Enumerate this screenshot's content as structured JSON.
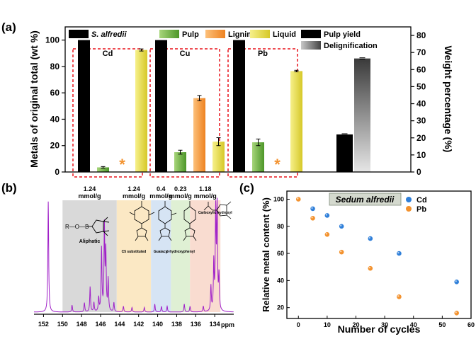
{
  "chart_data": [
    {
      "panel": "(a)",
      "type": "bar",
      "ylabel_left": "Metals of original total (wt %)",
      "ylabel_right": "Weight percentage (%)",
      "ylim_left": [
        0,
        110
      ],
      "ylim_right": [
        0,
        85
      ],
      "yticks_left": [
        "0",
        "20",
        "40",
        "60",
        "80",
        "100"
      ],
      "yticks_right": [
        "0",
        "10",
        "20",
        "30",
        "40",
        "50",
        "60",
        "70",
        "80"
      ],
      "legend": [
        {
          "label": "S. alfredii",
          "color": "#2f7fd9"
        },
        {
          "label": "Pulp",
          "color": "#5fa33a"
        },
        {
          "label": "Lignin",
          "color": "#f3922e"
        },
        {
          "label": "Liquid",
          "color": "#e3d83a"
        },
        {
          "label": "Pulp yield",
          "color": "#ef3a4a"
        },
        {
          "label": "Delignification",
          "color": "#4a4a4a"
        }
      ],
      "groups": [
        {
          "name": "Cd",
          "bars": [
            {
              "series": "S. alfredii",
              "value": 100,
              "error": null
            },
            {
              "series": "Pulp",
              "value": 3.5,
              "error": 0.6
            },
            {
              "series": "Lignin",
              "value": 0,
              "error": null,
              "star": true
            },
            {
              "series": "Liquid",
              "value": 92.5,
              "error": 0.8
            }
          ]
        },
        {
          "name": "Cu",
          "bars": [
            {
              "series": "S. alfredii",
              "value": 100,
              "error": null
            },
            {
              "series": "Pulp",
              "value": 15,
              "error": 1.5
            },
            {
              "series": "Lignin",
              "value": 56,
              "error": 2.0
            },
            {
              "series": "Liquid",
              "value": 23,
              "error": 3.0
            }
          ]
        },
        {
          "name": "Pb",
          "bars": [
            {
              "series": "S. alfredii",
              "value": 100,
              "error": null
            },
            {
              "series": "Pulp",
              "value": 22.5,
              "error": 2.5
            },
            {
              "series": "Lignin",
              "value": 0,
              "error": null,
              "star": true
            },
            {
              "series": "Liquid",
              "value": 76.5,
              "error": 0.6
            }
          ]
        }
      ],
      "right_axis_bars": [
        {
          "series": "Pulp yield",
          "value": 22,
          "error": 0.4
        },
        {
          "series": "Delignification",
          "value": 66.5,
          "error": 0.4
        }
      ],
      "star_symbol": "*"
    },
    {
      "panel": "(b)",
      "type": "line",
      "xlabel": "ppm",
      "xlim": [
        153,
        132
      ],
      "xticks": [
        "152",
        "150",
        "148",
        "146",
        "144",
        "142",
        "140",
        "138",
        "136",
        "134"
      ],
      "regions": [
        {
          "range": [
            150,
            144.3
          ],
          "color": "#d9d9d9",
          "value_label": "1.24",
          "unit": "mmol/g",
          "name": "Aliphatic",
          "formula": "R—O—B"
        },
        {
          "range": [
            144.3,
            140.7
          ],
          "color": "#fbe8c4",
          "value_label": "1.24",
          "unit": "mmol/g",
          "name": "C5 substituted"
        },
        {
          "range": [
            140.7,
            138.6
          ],
          "color": "#d6e4f4",
          "value_label": "0.4",
          "unit": "mmol/g",
          "name": "Guaiacyl"
        },
        {
          "range": [
            138.6,
            136.6
          ],
          "color": "#dff0d4",
          "value_label": "0.23",
          "unit": "mmol/g",
          "name": "p-hydroxyphenyl"
        },
        {
          "range": [
            136.6,
            133.4
          ],
          "color": "#f9dcd0",
          "value_label": "1.18",
          "unit": "mmol/g",
          "name": "Carboxylic hydroxyl"
        }
      ],
      "peaks": [
        {
          "ppm": 151.5,
          "h": 0.97
        },
        {
          "ppm": 149.0,
          "h": 0.06
        },
        {
          "ppm": 147.7,
          "h": 0.08
        },
        {
          "ppm": 147.1,
          "h": 0.22
        },
        {
          "ppm": 146.7,
          "h": 0.08
        },
        {
          "ppm": 146.2,
          "h": 0.12
        },
        {
          "ppm": 145.9,
          "h": 0.55
        },
        {
          "ppm": 145.6,
          "h": 0.74
        },
        {
          "ppm": 145.45,
          "h": 0.52
        },
        {
          "ppm": 145.2,
          "h": 0.28
        },
        {
          "ppm": 144.6,
          "h": 0.08
        },
        {
          "ppm": 143.6,
          "h": 0.05
        },
        {
          "ppm": 142.7,
          "h": 0.04
        },
        {
          "ppm": 141.4,
          "h": 0.04
        },
        {
          "ppm": 140.3,
          "h": 0.07
        },
        {
          "ppm": 139.6,
          "h": 0.05
        },
        {
          "ppm": 139.0,
          "h": 0.05
        },
        {
          "ppm": 137.2,
          "h": 0.07
        },
        {
          "ppm": 136.6,
          "h": 0.05
        },
        {
          "ppm": 135.2,
          "h": 0.05
        },
        {
          "ppm": 134.4,
          "h": 0.22
        },
        {
          "ppm": 134.1,
          "h": 0.42
        },
        {
          "ppm": 133.9,
          "h": 0.85
        },
        {
          "ppm": 133.75,
          "h": 0.98
        },
        {
          "ppm": 133.55,
          "h": 0.3
        }
      ]
    },
    {
      "panel": "(c)",
      "type": "scatter",
      "title": "Sedum alfredii",
      "xlabel": "Number of cycles",
      "ylabel": "Relative metal content (%)",
      "xlim": [
        -4,
        60
      ],
      "ylim": [
        12,
        106
      ],
      "xticks": [
        0,
        10,
        20,
        30,
        40,
        50,
        60
      ],
      "yticks": [
        20,
        40,
        60,
        80,
        100
      ],
      "legend_position": "top-right",
      "series": [
        {
          "name": "Cd",
          "color": "#2f7fd9",
          "x": [
            0,
            5,
            10,
            15,
            25,
            35,
            55
          ],
          "y": [
            100,
            93,
            88,
            80,
            71,
            60,
            39
          ]
        },
        {
          "name": "Pb",
          "color": "#f3922e",
          "x": [
            0,
            5,
            10,
            15,
            25,
            35,
            55
          ],
          "y": [
            100,
            86,
            74,
            61,
            49,
            28,
            16
          ]
        }
      ]
    }
  ]
}
